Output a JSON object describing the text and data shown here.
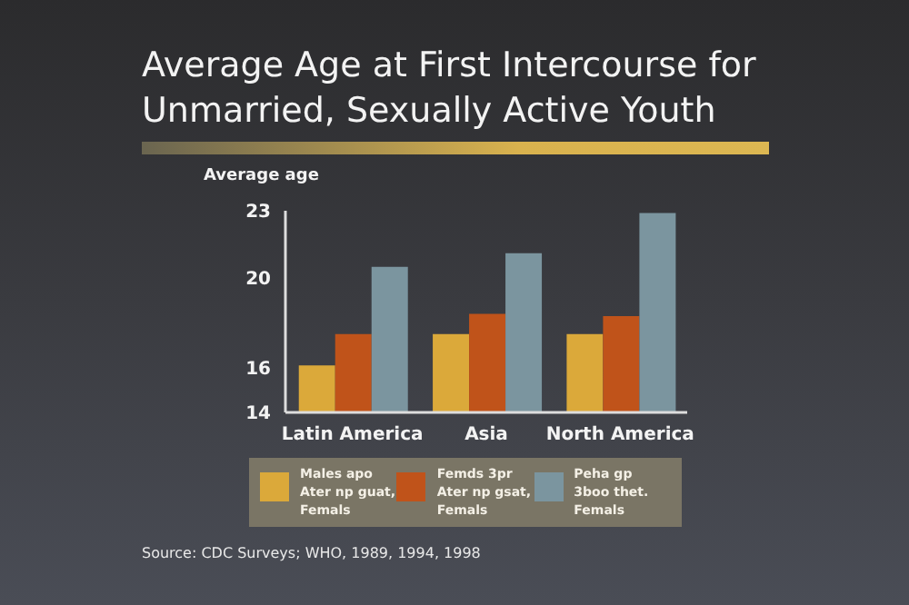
{
  "chart_data": {
    "type": "bar",
    "title": "Average Age at First Intercourse for Unmarried, Sexually Active Youth",
    "ylabel": "Average age",
    "categories": [
      "Latin America",
      "Asia",
      "North America"
    ],
    "series": [
      {
        "name": "Males apo Ater np guat, Femals",
        "color": "#dba93a",
        "values": [
          16.1,
          17.5,
          17.5
        ]
      },
      {
        "name": "Femds 3pr Ater np gsat, Femals",
        "color": "#c0531a",
        "values": [
          17.5,
          18.4,
          18.3
        ]
      },
      {
        "name": "Peha gp 3boo thet. Femals",
        "color": "#7b959f",
        "values": [
          20.5,
          21.1,
          22.9
        ]
      }
    ],
    "ylim": [
      14,
      23
    ],
    "yticks": [
      14,
      16,
      20,
      23
    ],
    "grid": false,
    "legend": "bottom",
    "annotations": [
      "Source: CDC Surveys; WHO, 1989, 1994, 1998"
    ]
  }
}
